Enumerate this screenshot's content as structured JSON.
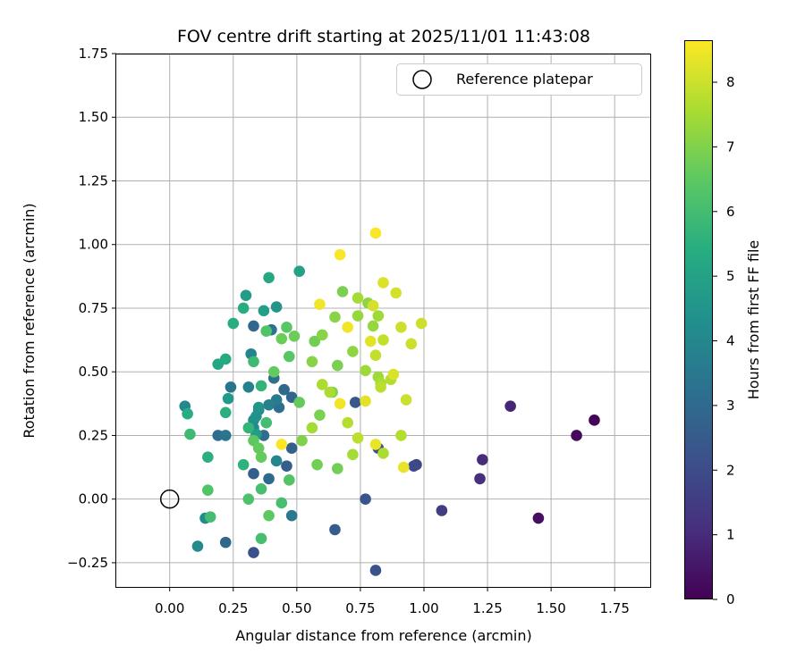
{
  "chart_data": {
    "type": "scatter",
    "title": "FOV centre drift starting at 2025/11/01 11:43:08",
    "xlabel": "Angular distance from reference (arcmin)",
    "ylabel": "Rotation from reference (arcmin)",
    "xlim": [
      -0.21,
      1.89
    ],
    "ylim": [
      -0.345,
      1.75
    ],
    "x_ticks": [
      "0.00",
      "0.25",
      "0.50",
      "0.75",
      "1.00",
      "1.25",
      "1.50",
      "1.75"
    ],
    "y_ticks": [
      "−0.25",
      "0.00",
      "0.25",
      "0.50",
      "0.75",
      "1.00",
      "1.25",
      "1.50",
      "1.75"
    ],
    "grid": true,
    "legend": {
      "position": "top-right",
      "entries": [
        "Reference platepar"
      ]
    },
    "reference_point": {
      "x": 0.0,
      "y": 0.0
    },
    "colorbar": {
      "label": "Hours from first FF file",
      "min": 0,
      "max": 8.65,
      "ticks": [
        "0",
        "1",
        "2",
        "3",
        "4",
        "5",
        "6",
        "7",
        "8"
      ],
      "colormap": "viridis"
    },
    "series": [
      {
        "name": "FOV centre drift",
        "points": [
          {
            "x": 1.67,
            "y": 0.31,
            "h": 0.1
          },
          {
            "x": 1.6,
            "y": 0.25,
            "h": 0.2
          },
          {
            "x": 1.45,
            "y": -0.075,
            "h": 0.3
          },
          {
            "x": 1.34,
            "y": 0.365,
            "h": 0.9
          },
          {
            "x": 1.23,
            "y": 0.155,
            "h": 1.0
          },
          {
            "x": 1.22,
            "y": 0.08,
            "h": 1.1
          },
          {
            "x": 1.07,
            "y": -0.045,
            "h": 1.5
          },
          {
            "x": 0.97,
            "y": 0.135,
            "h": 1.8
          },
          {
            "x": 0.96,
            "y": 0.13,
            "h": 1.9
          },
          {
            "x": 0.82,
            "y": 0.2,
            "h": 2.1
          },
          {
            "x": 0.81,
            "y": -0.28,
            "h": 2.2
          },
          {
            "x": 0.77,
            "y": 0.0,
            "h": 2.3
          },
          {
            "x": 0.73,
            "y": 0.38,
            "h": 2.4
          },
          {
            "x": 0.65,
            "y": -0.12,
            "h": 2.5
          },
          {
            "x": 0.46,
            "y": 0.13,
            "h": 2.6
          },
          {
            "x": 0.48,
            "y": 0.2,
            "h": 2.7
          },
          {
            "x": 0.48,
            "y": 0.4,
            "h": 2.8
          },
          {
            "x": 0.45,
            "y": 0.43,
            "h": 3.0
          },
          {
            "x": 0.43,
            "y": 0.36,
            "h": 3.1
          },
          {
            "x": 0.41,
            "y": 0.475,
            "h": 3.2
          },
          {
            "x": 0.39,
            "y": 0.08,
            "h": 3.0
          },
          {
            "x": 0.33,
            "y": 0.1,
            "h": 2.6
          },
          {
            "x": 0.33,
            "y": 0.68,
            "h": 2.9
          },
          {
            "x": 0.4,
            "y": 0.665,
            "h": 3.3
          },
          {
            "x": 0.37,
            "y": 0.25,
            "h": 3.1
          },
          {
            "x": 0.33,
            "y": -0.21,
            "h": 2.2
          },
          {
            "x": 0.22,
            "y": -0.17,
            "h": 2.9
          },
          {
            "x": 0.19,
            "y": 0.25,
            "h": 3.1
          },
          {
            "x": 0.24,
            "y": 0.44,
            "h": 3.4
          },
          {
            "x": 0.22,
            "y": 0.25,
            "h": 3.4
          },
          {
            "x": 0.48,
            "y": -0.065,
            "h": 3.5
          },
          {
            "x": 0.42,
            "y": 0.39,
            "h": 3.6
          },
          {
            "x": 0.35,
            "y": 0.35,
            "h": 3.7
          },
          {
            "x": 0.31,
            "y": 0.44,
            "h": 3.8
          },
          {
            "x": 0.32,
            "y": 0.57,
            "h": 3.9
          },
          {
            "x": 0.39,
            "y": 0.37,
            "h": 3.8
          },
          {
            "x": 0.42,
            "y": 0.15,
            "h": 4.0
          },
          {
            "x": 0.33,
            "y": 0.28,
            "h": 4.0
          },
          {
            "x": 0.06,
            "y": 0.365,
            "h": 4.0
          },
          {
            "x": 0.11,
            "y": -0.185,
            "h": 4.1
          },
          {
            "x": 0.14,
            "y": -0.075,
            "h": 4.2
          },
          {
            "x": 0.33,
            "y": 0.31,
            "h": 4.3
          },
          {
            "x": 0.34,
            "y": 0.325,
            "h": 4.4
          },
          {
            "x": 0.35,
            "y": 0.36,
            "h": 4.5
          },
          {
            "x": 0.42,
            "y": 0.755,
            "h": 4.5
          },
          {
            "x": 0.23,
            "y": 0.395,
            "h": 4.7
          },
          {
            "x": 0.34,
            "y": 0.255,
            "h": 4.8
          },
          {
            "x": 0.3,
            "y": 0.8,
            "h": 4.8
          },
          {
            "x": 0.37,
            "y": 0.74,
            "h": 4.9
          },
          {
            "x": 0.51,
            "y": 0.895,
            "h": 5.0
          },
          {
            "x": 0.39,
            "y": 0.87,
            "h": 5.2
          },
          {
            "x": 0.19,
            "y": 0.53,
            "h": 5.1
          },
          {
            "x": 0.22,
            "y": 0.55,
            "h": 5.3
          },
          {
            "x": 0.25,
            "y": 0.69,
            "h": 5.4
          },
          {
            "x": 0.29,
            "y": 0.75,
            "h": 5.4
          },
          {
            "x": 0.07,
            "y": 0.335,
            "h": 5.4
          },
          {
            "x": 0.22,
            "y": 0.34,
            "h": 5.5
          },
          {
            "x": 0.15,
            "y": 0.165,
            "h": 5.5
          },
          {
            "x": 0.29,
            "y": 0.135,
            "h": 5.6
          },
          {
            "x": 0.36,
            "y": 0.445,
            "h": 5.7
          },
          {
            "x": 0.31,
            "y": 0.28,
            "h": 5.7
          },
          {
            "x": 0.33,
            "y": 0.54,
            "h": 5.9
          },
          {
            "x": 0.08,
            "y": 0.255,
            "h": 5.9
          },
          {
            "x": 0.38,
            "y": 0.3,
            "h": 6.0
          },
          {
            "x": 0.16,
            "y": -0.07,
            "h": 6.0
          },
          {
            "x": 0.36,
            "y": -0.155,
            "h": 6.1
          },
          {
            "x": 0.44,
            "y": -0.015,
            "h": 6.1
          },
          {
            "x": 0.36,
            "y": 0.04,
            "h": 6.1
          },
          {
            "x": 0.31,
            "y": 0.0,
            "h": 6.2
          },
          {
            "x": 0.15,
            "y": 0.035,
            "h": 6.3
          },
          {
            "x": 0.47,
            "y": 0.075,
            "h": 6.3
          },
          {
            "x": 0.38,
            "y": 0.66,
            "h": 6.3
          },
          {
            "x": 0.46,
            "y": 0.675,
            "h": 6.4
          },
          {
            "x": 0.47,
            "y": 0.56,
            "h": 6.4
          },
          {
            "x": 0.39,
            "y": -0.065,
            "h": 6.5
          },
          {
            "x": 0.33,
            "y": 0.23,
            "h": 6.5
          },
          {
            "x": 0.35,
            "y": 0.2,
            "h": 6.6
          },
          {
            "x": 0.36,
            "y": 0.165,
            "h": 6.6
          },
          {
            "x": 0.41,
            "y": 0.5,
            "h": 6.6
          },
          {
            "x": 0.51,
            "y": 0.38,
            "h": 6.6
          },
          {
            "x": 0.49,
            "y": 0.64,
            "h": 6.7
          },
          {
            "x": 0.44,
            "y": 0.63,
            "h": 6.7
          },
          {
            "x": 0.58,
            "y": 0.135,
            "h": 6.8
          },
          {
            "x": 0.66,
            "y": 0.12,
            "h": 6.8
          },
          {
            "x": 0.57,
            "y": 0.62,
            "h": 6.8
          },
          {
            "x": 0.68,
            "y": 0.815,
            "h": 6.9
          },
          {
            "x": 0.66,
            "y": 0.525,
            "h": 6.9
          },
          {
            "x": 0.59,
            "y": 0.33,
            "h": 6.9
          },
          {
            "x": 0.52,
            "y": 0.23,
            "h": 7.0
          },
          {
            "x": 0.64,
            "y": 0.42,
            "h": 7.0
          },
          {
            "x": 0.65,
            "y": 0.715,
            "h": 7.1
          },
          {
            "x": 0.6,
            "y": 0.645,
            "h": 7.1
          },
          {
            "x": 0.56,
            "y": 0.54,
            "h": 7.1
          },
          {
            "x": 0.78,
            "y": 0.77,
            "h": 7.2
          },
          {
            "x": 0.72,
            "y": 0.58,
            "h": 7.2
          },
          {
            "x": 0.74,
            "y": 0.72,
            "h": 7.3
          },
          {
            "x": 0.8,
            "y": 0.68,
            "h": 7.3
          },
          {
            "x": 0.82,
            "y": 0.72,
            "h": 7.4
          },
          {
            "x": 0.82,
            "y": 0.48,
            "h": 7.4
          },
          {
            "x": 0.77,
            "y": 0.505,
            "h": 7.4
          },
          {
            "x": 0.74,
            "y": 0.79,
            "h": 7.5
          },
          {
            "x": 0.56,
            "y": 0.28,
            "h": 7.5
          },
          {
            "x": 0.72,
            "y": 0.175,
            "h": 7.5
          },
          {
            "x": 0.6,
            "y": 0.45,
            "h": 7.6
          },
          {
            "x": 0.63,
            "y": 0.42,
            "h": 7.6
          },
          {
            "x": 0.83,
            "y": 0.455,
            "h": 7.6
          },
          {
            "x": 0.84,
            "y": 0.18,
            "h": 7.6
          },
          {
            "x": 0.87,
            "y": 0.47,
            "h": 7.7
          },
          {
            "x": 0.91,
            "y": 0.25,
            "h": 7.7
          },
          {
            "x": 0.7,
            "y": 0.3,
            "h": 7.7
          },
          {
            "x": 0.74,
            "y": 0.24,
            "h": 7.8
          },
          {
            "x": 0.83,
            "y": 0.44,
            "h": 7.8
          },
          {
            "x": 0.84,
            "y": 0.625,
            "h": 7.9
          },
          {
            "x": 0.81,
            "y": 0.565,
            "h": 7.9
          },
          {
            "x": 0.91,
            "y": 0.675,
            "h": 8.0
          },
          {
            "x": 0.95,
            "y": 0.61,
            "h": 8.0
          },
          {
            "x": 0.99,
            "y": 0.69,
            "h": 8.0
          },
          {
            "x": 0.93,
            "y": 0.39,
            "h": 8.0
          },
          {
            "x": 0.89,
            "y": 0.81,
            "h": 8.1
          },
          {
            "x": 0.8,
            "y": 0.76,
            "h": 8.1
          },
          {
            "x": 0.88,
            "y": 0.49,
            "h": 8.2
          },
          {
            "x": 0.84,
            "y": 0.85,
            "h": 8.2
          },
          {
            "x": 0.79,
            "y": 0.62,
            "h": 8.3
          },
          {
            "x": 0.77,
            "y": 0.385,
            "h": 8.3
          },
          {
            "x": 0.81,
            "y": 0.215,
            "h": 8.4
          },
          {
            "x": 0.92,
            "y": 0.125,
            "h": 8.4
          },
          {
            "x": 0.67,
            "y": 0.375,
            "h": 8.5
          },
          {
            "x": 0.7,
            "y": 0.675,
            "h": 8.5
          },
          {
            "x": 0.59,
            "y": 0.765,
            "h": 8.5
          },
          {
            "x": 0.44,
            "y": 0.215,
            "h": 8.6
          },
          {
            "x": 0.67,
            "y": 0.96,
            "h": 8.6
          },
          {
            "x": 0.81,
            "y": 1.045,
            "h": 8.6
          }
        ]
      }
    ]
  }
}
